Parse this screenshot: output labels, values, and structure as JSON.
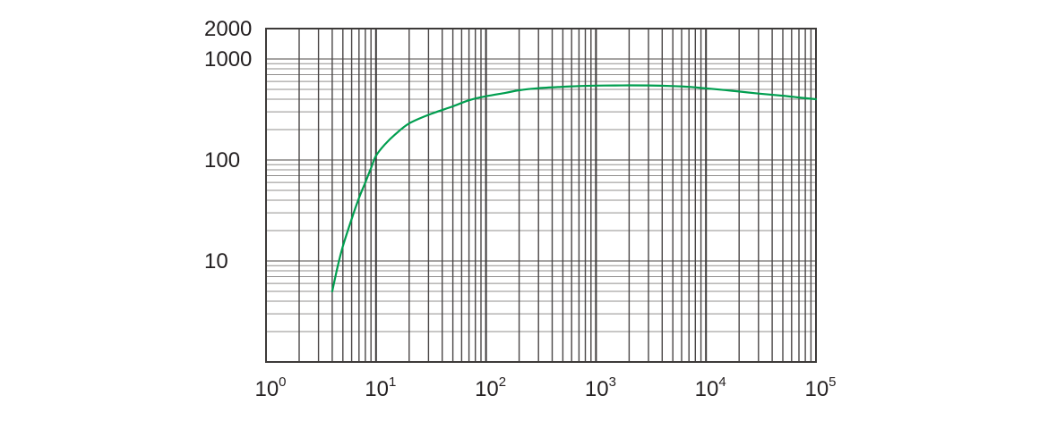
{
  "figure": {
    "background": "#ffffff",
    "colors": {
      "curve": "#009E4F",
      "grid_vertical_major": "#3d3a39",
      "grid_vertical_minor": "#4a4646",
      "grid_horizontal_major": "#6f6c6b",
      "grid_horizontal_minor": "#918f8e",
      "border": "#3d3a39",
      "text": "#231f20"
    }
  },
  "chart_data": {
    "type": "line",
    "title": "",
    "xlabel": "",
    "ylabel": "",
    "x_scale": "log",
    "y_scale": "log",
    "x_range": [
      1,
      100000
    ],
    "y_range": [
      1,
      2000
    ],
    "grid": "log major and minor gridlines on both axes",
    "legend": "none",
    "x_ticks": [
      {
        "base": "10",
        "exp": "0",
        "value": 1
      },
      {
        "base": "10",
        "exp": "1",
        "value": 10
      },
      {
        "base": "10",
        "exp": "2",
        "value": 100
      },
      {
        "base": "10",
        "exp": "3",
        "value": 1000
      },
      {
        "base": "10",
        "exp": "4",
        "value": 10000
      },
      {
        "base": "10",
        "exp": "5",
        "value": 100000
      }
    ],
    "y_ticks": [
      {
        "label": "2000",
        "value": 2000
      },
      {
        "label": "1000",
        "value": 1000
      },
      {
        "label": "100",
        "value": 100
      },
      {
        "label": "10",
        "value": 10
      }
    ],
    "series": [
      {
        "name": "green-curve",
        "color": "#009E4F",
        "points": [
          [
            4,
            5
          ],
          [
            4.5,
            9
          ],
          [
            5,
            14
          ],
          [
            6,
            26
          ],
          [
            7,
            42
          ],
          [
            8,
            60
          ],
          [
            9,
            83
          ],
          [
            10,
            110
          ],
          [
            12,
            142
          ],
          [
            15,
            180
          ],
          [
            20,
            230
          ],
          [
            30,
            280
          ],
          [
            50,
            340
          ],
          [
            70,
            390
          ],
          [
            100,
            428
          ],
          [
            150,
            462
          ],
          [
            200,
            490
          ],
          [
            300,
            514
          ],
          [
            500,
            531
          ],
          [
            700,
            540
          ],
          [
            1000,
            545
          ],
          [
            1500,
            547
          ],
          [
            2000,
            548
          ],
          [
            3000,
            547
          ],
          [
            5000,
            540
          ],
          [
            7000,
            530
          ],
          [
            10000,
            512
          ],
          [
            15000,
            492
          ],
          [
            20000,
            476
          ],
          [
            30000,
            455
          ],
          [
            50000,
            433
          ],
          [
            70000,
            416
          ],
          [
            100000,
            400
          ]
        ]
      }
    ]
  }
}
